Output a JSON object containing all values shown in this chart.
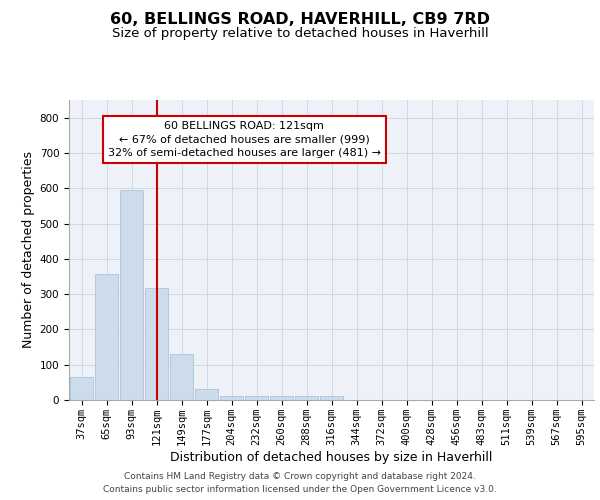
{
  "title": "60, BELLINGS ROAD, HAVERHILL, CB9 7RD",
  "subtitle": "Size of property relative to detached houses in Haverhill",
  "xlabel": "Distribution of detached houses by size in Haverhill",
  "ylabel": "Number of detached properties",
  "bar_labels": [
    "37sqm",
    "65sqm",
    "93sqm",
    "121sqm",
    "149sqm",
    "177sqm",
    "204sqm",
    "232sqm",
    "260sqm",
    "288sqm",
    "316sqm",
    "344sqm",
    "372sqm",
    "400sqm",
    "428sqm",
    "456sqm",
    "483sqm",
    "511sqm",
    "539sqm",
    "567sqm",
    "595sqm"
  ],
  "bar_values": [
    65,
    358,
    595,
    318,
    130,
    30,
    10,
    10,
    10,
    10,
    10,
    0,
    0,
    0,
    0,
    0,
    0,
    0,
    0,
    0,
    0
  ],
  "bar_color": "#cddcec",
  "bar_edgecolor": "#aec4d8",
  "vline_idx": 3,
  "vline_color": "#cc0000",
  "annotation_line1": "60 BELLINGS ROAD: 121sqm",
  "annotation_line2": "← 67% of detached houses are smaller (999)",
  "annotation_line3": "32% of semi-detached houses are larger (481) →",
  "annotation_box_edgecolor": "#cc0000",
  "annotation_box_facecolor": "#ffffff",
  "ylim": [
    0,
    850
  ],
  "yticks": [
    0,
    100,
    200,
    300,
    400,
    500,
    600,
    700,
    800
  ],
  "grid_color": "#d0d8e4",
  "bg_color": "#eef2f8",
  "footer1": "Contains HM Land Registry data © Crown copyright and database right 2024.",
  "footer2": "Contains public sector information licensed under the Open Government Licence v3.0.",
  "title_fontsize": 11.5,
  "subtitle_fontsize": 9.5,
  "xlabel_fontsize": 9,
  "ylabel_fontsize": 9,
  "tick_fontsize": 7.5,
  "annotation_fontsize": 8,
  "footer_fontsize": 6.5
}
